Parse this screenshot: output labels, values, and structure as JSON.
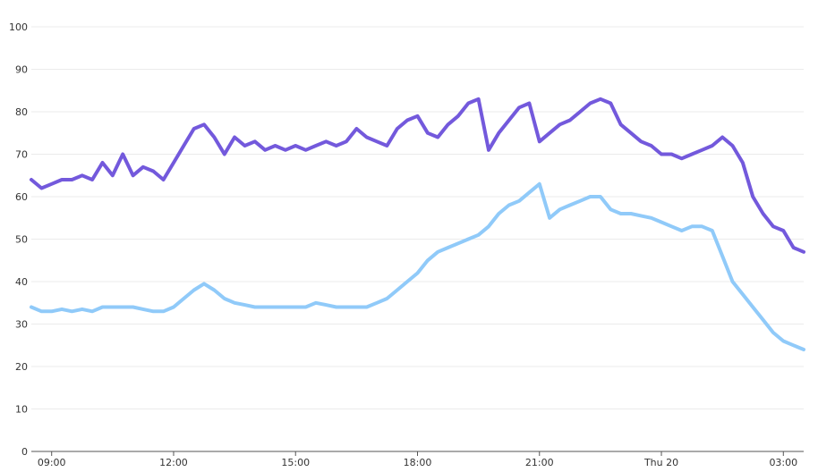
{
  "chart_data": {
    "type": "line",
    "title": "",
    "xlabel": "",
    "ylabel": "",
    "ylim": [
      0,
      100
    ],
    "y_ticks": [
      0,
      10,
      20,
      30,
      40,
      50,
      60,
      70,
      80,
      90,
      100
    ],
    "x_unit": "hours since 08:30 (Wed)",
    "xlim": [
      0,
      19
    ],
    "x_ticks": [
      {
        "x": 0.5,
        "label": "09:00"
      },
      {
        "x": 3.5,
        "label": "12:00"
      },
      {
        "x": 6.5,
        "label": "15:00"
      },
      {
        "x": 9.5,
        "label": "18:00"
      },
      {
        "x": 12.5,
        "label": "21:00"
      },
      {
        "x": 15.5,
        "label": "Thu 20"
      },
      {
        "x": 18.5,
        "label": "03:00"
      }
    ],
    "grid": true,
    "legend": "none",
    "series": [
      {
        "color": "#7359dc",
        "points": [
          [
            0.0,
            64
          ],
          [
            0.25,
            62
          ],
          [
            0.5,
            63
          ],
          [
            0.75,
            64
          ],
          [
            1.0,
            64
          ],
          [
            1.25,
            65
          ],
          [
            1.5,
            64
          ],
          [
            1.75,
            68
          ],
          [
            2.0,
            65
          ],
          [
            2.25,
            70
          ],
          [
            2.5,
            65
          ],
          [
            2.75,
            67
          ],
          [
            3.0,
            66
          ],
          [
            3.25,
            64
          ],
          [
            3.5,
            68
          ],
          [
            3.75,
            72
          ],
          [
            4.0,
            76
          ],
          [
            4.25,
            77
          ],
          [
            4.5,
            74
          ],
          [
            4.75,
            70
          ],
          [
            5.0,
            74
          ],
          [
            5.25,
            72
          ],
          [
            5.5,
            73
          ],
          [
            5.75,
            71
          ],
          [
            6.0,
            72
          ],
          [
            6.25,
            71
          ],
          [
            6.5,
            72
          ],
          [
            6.75,
            71
          ],
          [
            7.0,
            72
          ],
          [
            7.25,
            73
          ],
          [
            7.5,
            72
          ],
          [
            7.75,
            73
          ],
          [
            8.0,
            76
          ],
          [
            8.25,
            74
          ],
          [
            8.5,
            73
          ],
          [
            8.75,
            72
          ],
          [
            9.0,
            76
          ],
          [
            9.25,
            78
          ],
          [
            9.5,
            79
          ],
          [
            9.75,
            75
          ],
          [
            10.0,
            74
          ],
          [
            10.25,
            77
          ],
          [
            10.5,
            79
          ],
          [
            10.75,
            82
          ],
          [
            11.0,
            83
          ],
          [
            11.25,
            71
          ],
          [
            11.5,
            75
          ],
          [
            11.75,
            78
          ],
          [
            12.0,
            81
          ],
          [
            12.25,
            82
          ],
          [
            12.5,
            73
          ],
          [
            12.75,
            75
          ],
          [
            13.0,
            77
          ],
          [
            13.25,
            78
          ],
          [
            13.5,
            80
          ],
          [
            13.75,
            82
          ],
          [
            14.0,
            83
          ],
          [
            14.25,
            82
          ],
          [
            14.5,
            77
          ],
          [
            14.75,
            75
          ],
          [
            15.0,
            73
          ],
          [
            15.25,
            72
          ],
          [
            15.5,
            70
          ],
          [
            15.75,
            70
          ],
          [
            16.0,
            69
          ],
          [
            16.25,
            70
          ],
          [
            16.5,
            71
          ],
          [
            16.75,
            72
          ],
          [
            17.0,
            74
          ],
          [
            17.25,
            72
          ],
          [
            17.5,
            68
          ],
          [
            17.75,
            60
          ],
          [
            18.0,
            56
          ],
          [
            18.25,
            53
          ],
          [
            18.5,
            52
          ],
          [
            18.75,
            48
          ],
          [
            19.0,
            47
          ]
        ]
      },
      {
        "color": "#90caf9",
        "points": [
          [
            0.0,
            34
          ],
          [
            0.25,
            33
          ],
          [
            0.5,
            33
          ],
          [
            0.75,
            33.5
          ],
          [
            1.0,
            33
          ],
          [
            1.25,
            33.5
          ],
          [
            1.5,
            33
          ],
          [
            1.75,
            34
          ],
          [
            2.0,
            34
          ],
          [
            2.25,
            34
          ],
          [
            2.5,
            34
          ],
          [
            2.75,
            33.5
          ],
          [
            3.0,
            33
          ],
          [
            3.25,
            33
          ],
          [
            3.5,
            34
          ],
          [
            3.75,
            36
          ],
          [
            4.0,
            38
          ],
          [
            4.25,
            39.5
          ],
          [
            4.5,
            38
          ],
          [
            4.75,
            36
          ],
          [
            5.0,
            35
          ],
          [
            5.25,
            34.5
          ],
          [
            5.5,
            34
          ],
          [
            5.75,
            34
          ],
          [
            6.0,
            34
          ],
          [
            6.25,
            34
          ],
          [
            6.5,
            34
          ],
          [
            6.75,
            34
          ],
          [
            7.0,
            35
          ],
          [
            7.25,
            34.5
          ],
          [
            7.5,
            34
          ],
          [
            7.75,
            34
          ],
          [
            8.0,
            34
          ],
          [
            8.25,
            34
          ],
          [
            8.5,
            35
          ],
          [
            8.75,
            36
          ],
          [
            9.0,
            38
          ],
          [
            9.25,
            40
          ],
          [
            9.5,
            42
          ],
          [
            9.75,
            45
          ],
          [
            10.0,
            47
          ],
          [
            10.25,
            48
          ],
          [
            10.5,
            49
          ],
          [
            10.75,
            50
          ],
          [
            11.0,
            51
          ],
          [
            11.25,
            53
          ],
          [
            11.5,
            56
          ],
          [
            11.75,
            58
          ],
          [
            12.0,
            59
          ],
          [
            12.25,
            61
          ],
          [
            12.5,
            63
          ],
          [
            12.75,
            55
          ],
          [
            13.0,
            57
          ],
          [
            13.25,
            58
          ],
          [
            13.5,
            59
          ],
          [
            13.75,
            60
          ],
          [
            14.0,
            60
          ],
          [
            14.25,
            57
          ],
          [
            14.5,
            56
          ],
          [
            14.75,
            56
          ],
          [
            15.0,
            55.5
          ],
          [
            15.25,
            55
          ],
          [
            15.5,
            54
          ],
          [
            15.75,
            53
          ],
          [
            16.0,
            52
          ],
          [
            16.25,
            53
          ],
          [
            16.5,
            53
          ],
          [
            16.75,
            52
          ],
          [
            17.0,
            46
          ],
          [
            17.25,
            40
          ],
          [
            17.5,
            37
          ],
          [
            17.75,
            34
          ],
          [
            18.0,
            31
          ],
          [
            18.25,
            28
          ],
          [
            18.5,
            26
          ],
          [
            18.75,
            25
          ],
          [
            19.0,
            24
          ]
        ]
      }
    ]
  }
}
